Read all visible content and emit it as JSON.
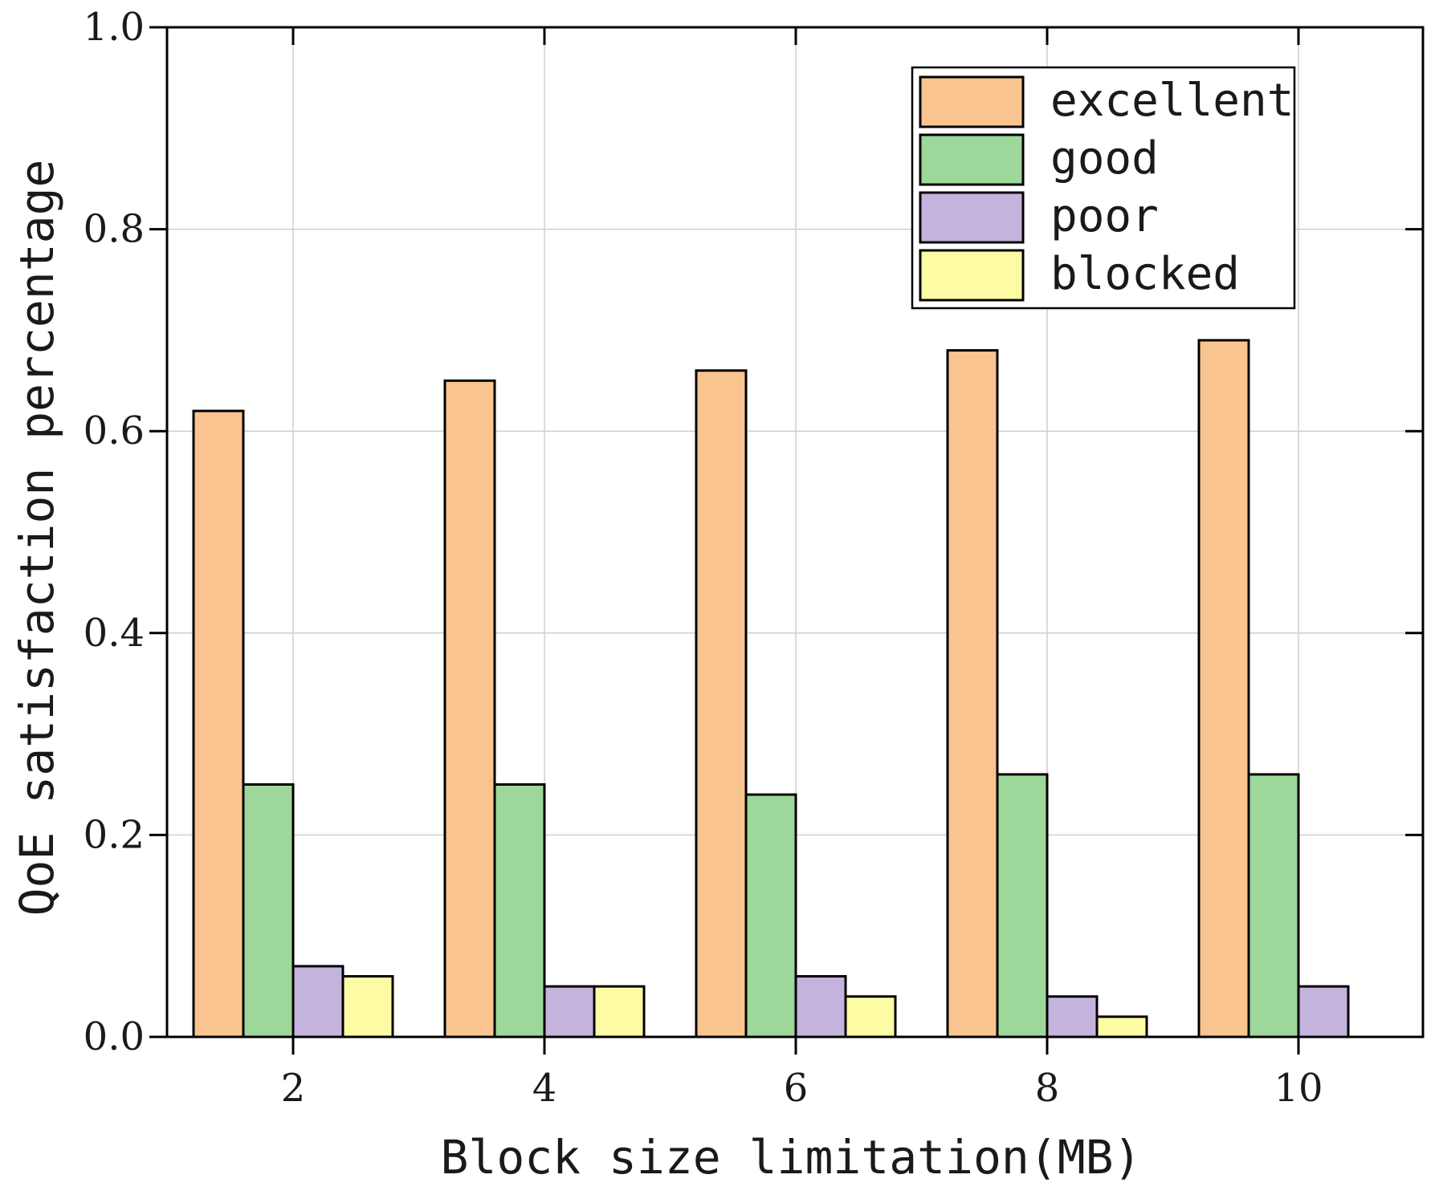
{
  "chart_data": {
    "type": "bar",
    "title": "",
    "xlabel": "Block size limitation(MB)",
    "ylabel": "QoE satisfaction percentage",
    "categories": [
      "2",
      "4",
      "6",
      "8",
      "10"
    ],
    "ylim": [
      0.0,
      1.0
    ],
    "yticks": [
      "0.0",
      "0.2",
      "0.4",
      "0.6",
      "0.8",
      "1.0"
    ],
    "grid": true,
    "legend_position": "top-right",
    "series": [
      {
        "name": "excellent",
        "color": "#f9c48f",
        "values": [
          0.62,
          0.65,
          0.66,
          0.68,
          0.69
        ]
      },
      {
        "name": "good",
        "color": "#9dd79a",
        "values": [
          0.25,
          0.25,
          0.24,
          0.26,
          0.26
        ]
      },
      {
        "name": "poor",
        "color": "#c4b3dc",
        "values": [
          0.07,
          0.05,
          0.06,
          0.04,
          0.05
        ]
      },
      {
        "name": "blocked",
        "color": "#fdfca4",
        "values": [
          0.06,
          0.05,
          0.04,
          0.02,
          0.0
        ]
      }
    ]
  }
}
